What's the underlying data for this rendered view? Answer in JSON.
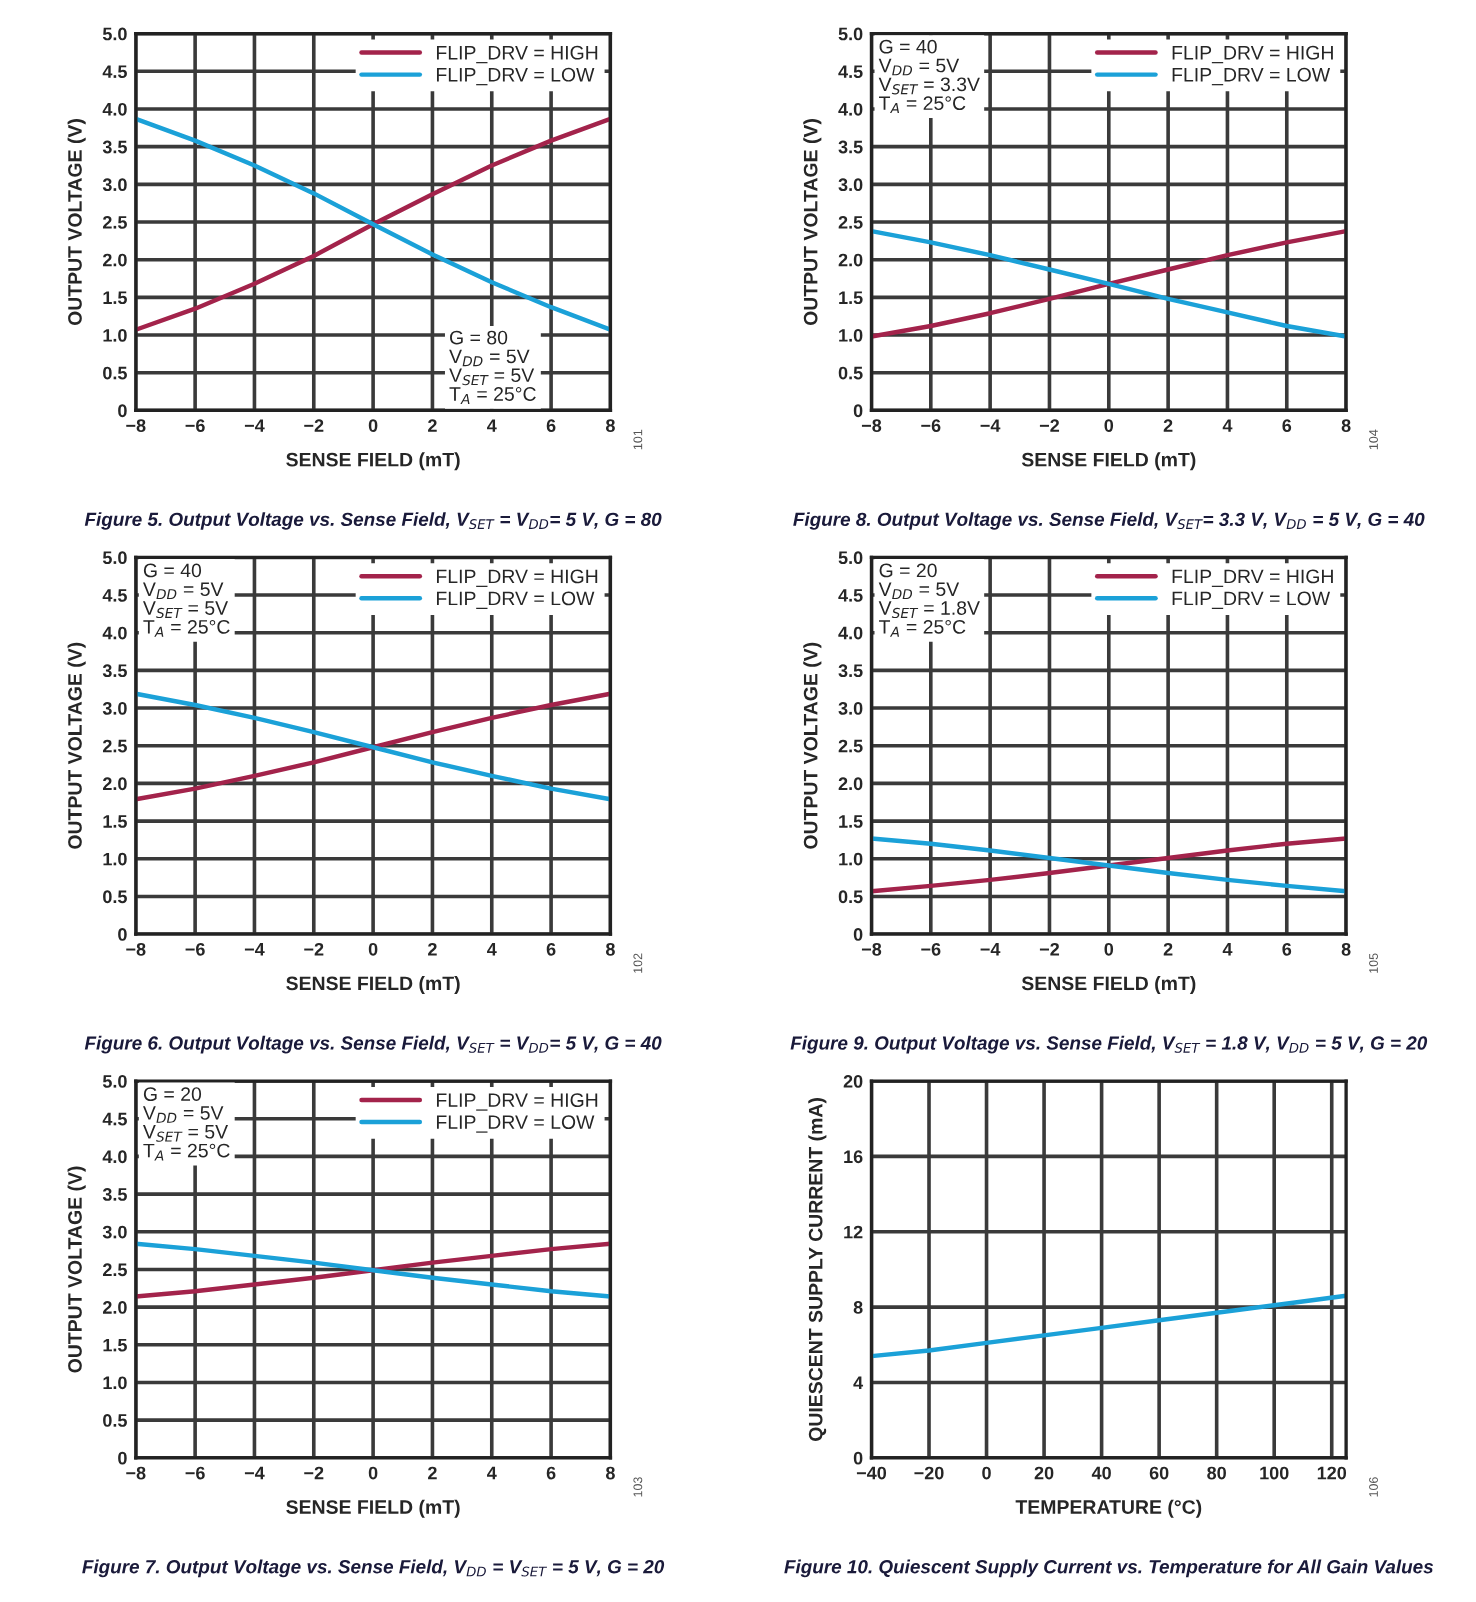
{
  "chart_data": [
    {
      "type": "line",
      "title": "Figure 5. Output Voltage vs. Sense Field, V$_{SET}$ = V$_{DD}$= 5 V, G = 80",
      "xlabel": "SENSE FIELD (mT)",
      "ylabel": "OUTPUT VOLTAGE (V)",
      "x": [
        -8,
        -6,
        -4,
        -2,
        0,
        2,
        4,
        6,
        8
      ],
      "series": [
        {
          "name": "FLIP_DRV = HIGH",
          "color": "#a3234b",
          "values": [
            1.07,
            1.35,
            1.68,
            2.05,
            2.47,
            2.87,
            3.25,
            3.58,
            3.87
          ]
        },
        {
          "name": "FLIP_DRV = LOW",
          "color": "#1ba1d8",
          "values": [
            3.87,
            3.58,
            3.25,
            2.88,
            2.47,
            2.07,
            1.7,
            1.37,
            1.07
          ]
        }
      ],
      "xlim": [
        -8,
        8
      ],
      "ylim": [
        0,
        5
      ],
      "xticks": [
        {
          "value": -8,
          "label": "−8"
        },
        {
          "value": -6,
          "label": "−6"
        },
        {
          "value": -4,
          "label": "−4"
        },
        {
          "value": -2,
          "label": "−2"
        },
        0,
        2,
        4,
        6,
        8
      ],
      "yticks": [
        0,
        0.5,
        {
          "value": 1,
          "label": "1.0"
        },
        1.5,
        {
          "value": 2,
          "label": "2.0"
        },
        2.5,
        {
          "value": 3,
          "label": "3.0"
        },
        3.5,
        {
          "value": 4,
          "label": "4.0"
        },
        4.5,
        {
          "value": 5,
          "label": "5.0"
        }
      ],
      "annotations": [
        "G = 80",
        "V$_{DD}$ = 5V",
        "V$_{SET}$ = 5V",
        "T$_{A}$ = 25°C",
        "101"
      ],
      "grid": true,
      "legend": "top right",
      "marker": "none",
      "line_style": "solid"
    },
    {
      "type": "line",
      "title": "Figure 8. Output Voltage vs. Sense Field, V$_{SET}$= 3.3 V, V$_{DD}$ = 5 V, G = 40",
      "xlabel": "SENSE FIELD (mT)",
      "ylabel": "OUTPUT VOLTAGE (V)",
      "x": [
        -8,
        -6,
        -4,
        -2,
        0,
        2,
        4,
        6,
        8
      ],
      "series": [
        {
          "name": "FLIP_DRV = HIGH",
          "color": "#a3234b",
          "values": [
            0.98,
            1.12,
            1.29,
            1.48,
            1.68,
            1.87,
            2.06,
            2.23,
            2.38
          ]
        },
        {
          "name": "FLIP_DRV = LOW",
          "color": "#1ba1d8",
          "values": [
            2.38,
            2.23,
            2.06,
            1.87,
            1.68,
            1.48,
            1.3,
            1.12,
            0.98
          ]
        }
      ],
      "xlim": [
        -8,
        8
      ],
      "ylim": [
        0,
        5
      ],
      "xticks": [
        {
          "value": -8,
          "label": "−8"
        },
        {
          "value": -6,
          "label": "−6"
        },
        {
          "value": -4,
          "label": "−4"
        },
        {
          "value": -2,
          "label": "−2"
        },
        0,
        2,
        4,
        6,
        8
      ],
      "yticks": [
        0,
        0.5,
        {
          "value": 1,
          "label": "1.0"
        },
        1.5,
        {
          "value": 2,
          "label": "2.0"
        },
        2.5,
        {
          "value": 3,
          "label": "3.0"
        },
        3.5,
        {
          "value": 4,
          "label": "4.0"
        },
        4.5,
        {
          "value": 5,
          "label": "5.0"
        }
      ],
      "annotations": [
        "G = 40",
        "V$_{DD}$ = 5V",
        "V$_{SET}$ = 3.3V",
        "T$_{A}$ = 25°C",
        "104"
      ],
      "grid": true,
      "legend": "top right",
      "marker": "none",
      "line_style": "solid"
    },
    {
      "type": "line",
      "title": "Figure 6. Output Voltage vs. Sense Field, V$_{SET}$ = V$_{DD}$= 5 V, G = 40",
      "xlabel": "SENSE FIELD (mT)",
      "ylabel": "OUTPUT VOLTAGE (V)",
      "x": [
        -8,
        -6,
        -4,
        -2,
        0,
        2,
        4,
        6,
        8
      ],
      "series": [
        {
          "name": "FLIP_DRV = HIGH",
          "color": "#a3234b",
          "values": [
            1.79,
            1.93,
            2.1,
            2.28,
            2.48,
            2.68,
            2.87,
            3.04,
            3.19
          ]
        },
        {
          "name": "FLIP_DRV = LOW",
          "color": "#1ba1d8",
          "values": [
            3.19,
            3.04,
            2.87,
            2.68,
            2.48,
            2.28,
            2.1,
            1.93,
            1.79
          ]
        }
      ],
      "xlim": [
        -8,
        8
      ],
      "ylim": [
        0,
        5
      ],
      "xticks": [
        {
          "value": -8,
          "label": "−8"
        },
        {
          "value": -6,
          "label": "−6"
        },
        {
          "value": -4,
          "label": "−4"
        },
        {
          "value": -2,
          "label": "−2"
        },
        0,
        2,
        4,
        6,
        8
      ],
      "yticks": [
        0,
        0.5,
        {
          "value": 1,
          "label": "1.0"
        },
        1.5,
        {
          "value": 2,
          "label": "2.0"
        },
        2.5,
        {
          "value": 3,
          "label": "3.0"
        },
        3.5,
        {
          "value": 4,
          "label": "4.0"
        },
        4.5,
        {
          "value": 5,
          "label": "5.0"
        }
      ],
      "annotations": [
        "G = 40",
        "V$_{DD}$ = 5V",
        "V$_{SET}$ = 5V",
        "T$_{A}$ = 25°C",
        "102"
      ],
      "grid": true,
      "legend": "top right",
      "marker": "none",
      "line_style": "solid"
    },
    {
      "type": "line",
      "title": "Figure 9. Output Voltage vs. Sense Field, V$_{SET}$ = 1.8 V, V$_{DD}$ = 5 V, G = 20",
      "xlabel": "SENSE FIELD (mT)",
      "ylabel": "OUTPUT VOLTAGE (V)",
      "x": [
        -8,
        -6,
        -4,
        -2,
        0,
        2,
        4,
        6,
        8
      ],
      "series": [
        {
          "name": "FLIP_DRV = HIGH",
          "color": "#a3234b",
          "values": [
            0.57,
            0.64,
            0.72,
            0.81,
            0.91,
            1.01,
            1.11,
            1.2,
            1.27
          ]
        },
        {
          "name": "FLIP_DRV = LOW",
          "color": "#1ba1d8",
          "values": [
            1.27,
            1.2,
            1.11,
            1.01,
            0.91,
            0.81,
            0.72,
            0.64,
            0.57
          ]
        }
      ],
      "xlim": [
        -8,
        8
      ],
      "ylim": [
        0,
        5
      ],
      "xticks": [
        {
          "value": -8,
          "label": "−8"
        },
        {
          "value": -6,
          "label": "−6"
        },
        {
          "value": -4,
          "label": "−4"
        },
        {
          "value": -2,
          "label": "−2"
        },
        0,
        2,
        4,
        6,
        8
      ],
      "yticks": [
        0,
        0.5,
        {
          "value": 1,
          "label": "1.0"
        },
        1.5,
        {
          "value": 2,
          "label": "2.0"
        },
        2.5,
        {
          "value": 3,
          "label": "3.0"
        },
        3.5,
        {
          "value": 4,
          "label": "4.0"
        },
        4.5,
        {
          "value": 5,
          "label": "5.0"
        }
      ],
      "annotations": [
        "G = 20",
        "V$_{DD}$ = 5V",
        "V$_{SET}$ = 1.8V",
        "T$_{A}$ = 25°C",
        "105"
      ],
      "grid": true,
      "legend": "top right",
      "marker": "none",
      "line_style": "solid"
    },
    {
      "type": "line",
      "title": "Figure 7. Output Voltage vs. Sense Field, V$_{DD}$ = V$_{SET}$ = 5 V, G = 20",
      "xlabel": "SENSE FIELD (mT)",
      "ylabel": "OUTPUT VOLTAGE (V)",
      "x": [
        -8,
        -6,
        -4,
        -2,
        0,
        2,
        4,
        6,
        8
      ],
      "series": [
        {
          "name": "FLIP_DRV = HIGH",
          "color": "#a3234b",
          "values": [
            2.14,
            2.21,
            2.3,
            2.39,
            2.49,
            2.59,
            2.68,
            2.77,
            2.84
          ]
        },
        {
          "name": "FLIP_DRV = LOW",
          "color": "#1ba1d8",
          "values": [
            2.84,
            2.77,
            2.68,
            2.59,
            2.49,
            2.39,
            2.3,
            2.21,
            2.14
          ]
        }
      ],
      "xlim": [
        -8,
        8
      ],
      "ylim": [
        0,
        5
      ],
      "xticks": [
        {
          "value": -8,
          "label": "−8"
        },
        {
          "value": -6,
          "label": "−6"
        },
        {
          "value": -4,
          "label": "−4"
        },
        {
          "value": -2,
          "label": "−2"
        },
        0,
        2,
        4,
        6,
        8
      ],
      "yticks": [
        0,
        0.5,
        {
          "value": 1,
          "label": "1.0"
        },
        1.5,
        {
          "value": 2,
          "label": "2.0"
        },
        2.5,
        {
          "value": 3,
          "label": "3.0"
        },
        3.5,
        {
          "value": 4,
          "label": "4.0"
        },
        4.5,
        {
          "value": 5,
          "label": "5.0"
        }
      ],
      "annotations": [
        "G = 20",
        "V$_{DD}$ = 5V",
        "V$_{SET}$ = 5V",
        "T$_{A}$ = 25°C",
        "103"
      ],
      "grid": true,
      "legend": "top right",
      "marker": "none",
      "line_style": "solid"
    },
    {
      "type": "line",
      "title": "Figure 10. Quiescent Supply Current vs. Temperature for All Gain Values",
      "xlabel": "TEMPERATURE (°C)",
      "ylabel": "QUIESCENT SUPPLY CURRENT (mA)",
      "x": [
        -40,
        -20,
        0,
        20,
        40,
        60,
        80,
        100,
        125
      ],
      "series": [
        {
          "color": "#1ba1d8",
          "values": [
            5.4,
            5.7,
            6.1,
            6.5,
            6.9,
            7.3,
            7.7,
            8.1,
            8.6
          ]
        }
      ],
      "xlim": [
        -40,
        125
      ],
      "ylim": [
        0,
        20
      ],
      "xticks": [
        {
          "value": -40,
          "label": "−40"
        },
        {
          "value": -20,
          "label": "−20"
        },
        0,
        20,
        40,
        60,
        80,
        100,
        120
      ],
      "yticks": [
        0,
        4,
        8,
        12,
        16,
        20
      ],
      "annotations": [
        "106"
      ],
      "grid": true,
      "marker": "none",
      "line_style": "solid"
    }
  ]
}
